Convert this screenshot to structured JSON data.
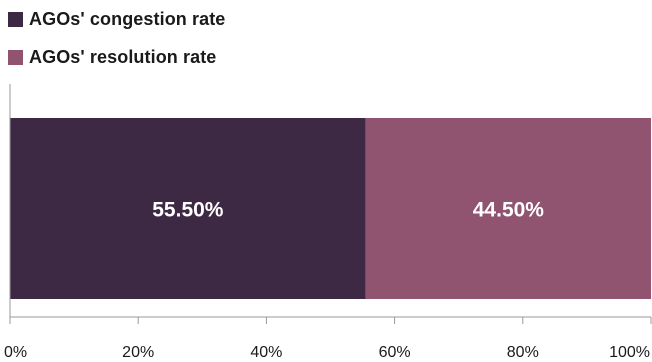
{
  "chart_data": {
    "type": "bar",
    "orientation": "horizontal",
    "stacked": true,
    "categories": [
      ""
    ],
    "series": [
      {
        "name": "AGOs' congestion rate",
        "values": [
          55.5
        ],
        "color": "#3e2944",
        "label": "55.50%"
      },
      {
        "name": "AGOs' resolution rate",
        "values": [
          44.5
        ],
        "color": "#905470",
        "label": "44.50%"
      }
    ],
    "xlim": [
      0,
      100
    ],
    "x_ticks": [
      {
        "value": 0,
        "label": "0%"
      },
      {
        "value": 20,
        "label": "20%"
      },
      {
        "value": 40,
        "label": "40%"
      },
      {
        "value": 60,
        "label": "60%"
      },
      {
        "value": 80,
        "label": "80%"
      },
      {
        "value": 100,
        "label": "100%"
      }
    ],
    "title": "",
    "xlabel": "",
    "ylabel": "",
    "grid": false,
    "legend_position": "top-left"
  }
}
